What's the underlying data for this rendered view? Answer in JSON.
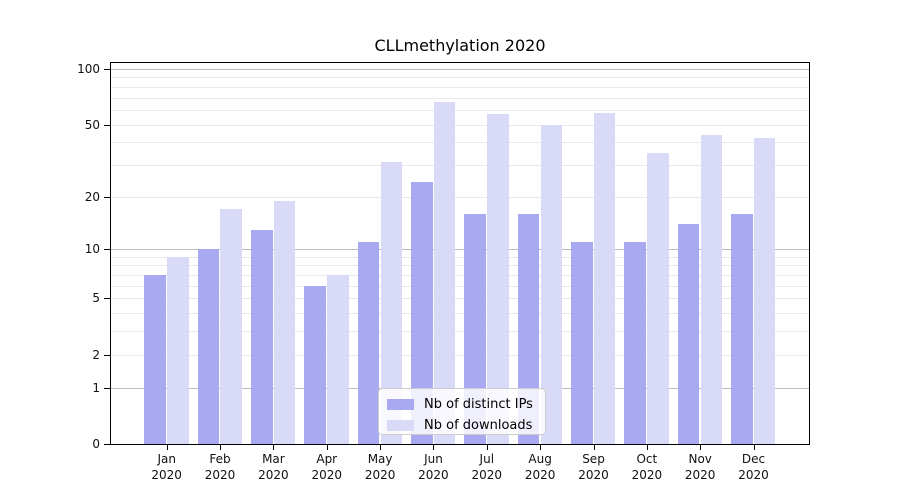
{
  "title": "CLLmethylation 2020",
  "legend": {
    "position": "lower center",
    "entries": [
      {
        "label": "Nb of distinct IPs",
        "color": "#a9a9f1"
      },
      {
        "label": "Nb of downloads",
        "color": "#d9d9f8"
      }
    ]
  },
  "colors": {
    "distinct_ips": "#a9a9f1",
    "downloads": "#d9d9f8",
    "grid_dark": "#bbbbbb",
    "grid_light": "#e9e9e9",
    "axis": "#000000"
  },
  "chart_data": {
    "type": "bar",
    "title": "CLLmethylation 2020",
    "xlabel": "",
    "ylabel": "",
    "categories": [
      "Jan 2020",
      "Feb 2020",
      "Mar 2020",
      "Apr 2020",
      "May 2020",
      "Jun 2020",
      "Jul 2020",
      "Aug 2020",
      "Sep 2020",
      "Oct 2020",
      "Nov 2020",
      "Dec 2020"
    ],
    "series": [
      {
        "name": "Nb of distinct IPs",
        "values": [
          7,
          10,
          13,
          6,
          11,
          24,
          16,
          16,
          11,
          11,
          14,
          16
        ]
      },
      {
        "name": "Nb of downloads",
        "values": [
          9,
          17,
          19,
          7,
          31,
          66,
          57,
          50,
          58,
          35,
          44,
          42
        ]
      }
    ],
    "y_scale": "log1p",
    "y_ticks": [
      0,
      1,
      2,
      5,
      10,
      20,
      50,
      100
    ],
    "ylim": [
      0,
      110
    ],
    "grid": true,
    "gridlines_dark": [
      1,
      10,
      100
    ],
    "gridlines_light": [
      2,
      3,
      4,
      5,
      6,
      7,
      8,
      9,
      20,
      30,
      40,
      50,
      60,
      70,
      80,
      90
    ],
    "legend_position": "lower center"
  }
}
